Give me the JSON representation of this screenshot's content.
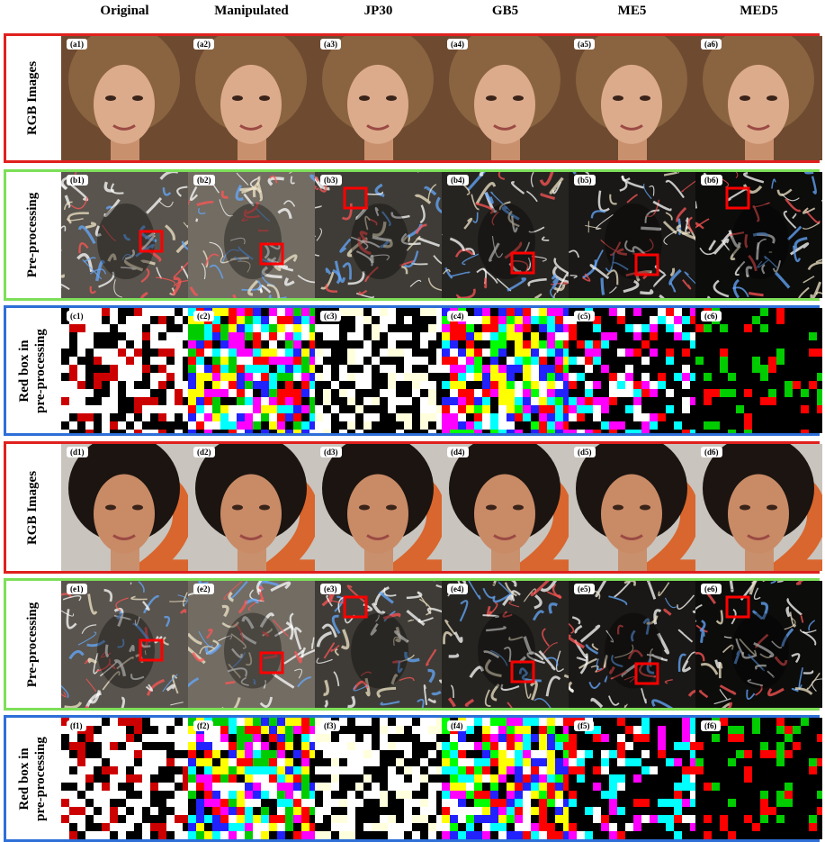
{
  "columns": [
    "Original",
    "Manipulated",
    "JP30",
    "GB5",
    "ME5",
    "MED5"
  ],
  "rows": [
    {
      "label": [
        "RGB Images"
      ],
      "panels": [
        "(a1)",
        "(a2)",
        "(a3)",
        "(a4)",
        "(a5)",
        "(a6)"
      ]
    },
    {
      "label": [
        "Pre-processing"
      ],
      "panels": [
        "(b1)",
        "(b2)",
        "(b3)",
        "(b4)",
        "(b5)",
        "(b6)"
      ]
    },
    {
      "label": [
        "Red box in",
        "pre-processing"
      ],
      "panels": [
        "(c1)",
        "(c2)",
        "(c3)",
        "(c4)",
        "(c5)",
        "(c6)"
      ]
    },
    {
      "label": [
        "RGB Images"
      ],
      "panels": [
        "(d1)",
        "(d2)",
        "(d3)",
        "(d4)",
        "(d5)",
        "(d6)"
      ]
    },
    {
      "label": [
        "Pre-processing"
      ],
      "panels": [
        "(e1)",
        "(e2)",
        "(e3)",
        "(e4)",
        "(e5)",
        "(e6)"
      ]
    },
    {
      "label": [
        "Red box in",
        "pre-processing"
      ],
      "panels": [
        "(f1)",
        "(f2)",
        "(f3)",
        "(f4)",
        "(f5)",
        "(f6)"
      ]
    }
  ]
}
